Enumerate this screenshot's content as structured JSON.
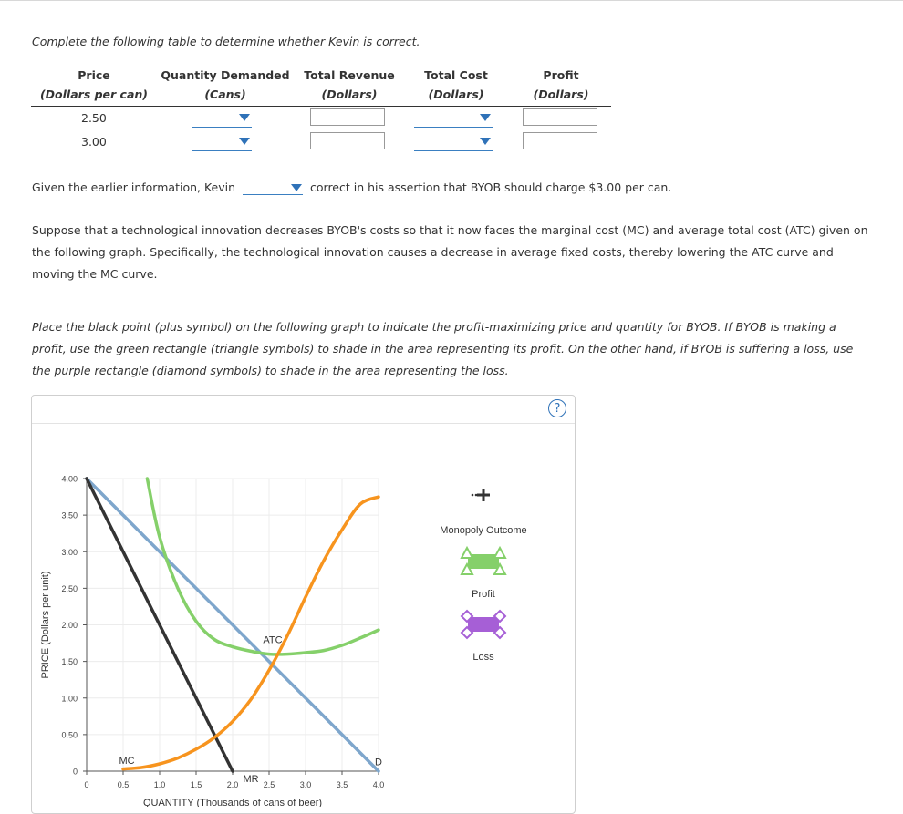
{
  "intro": "Complete the following table to determine whether Kevin is correct.",
  "table": {
    "headers": [
      {
        "title": "Price",
        "sub": "(Dollars per can)"
      },
      {
        "title": "Quantity Demanded",
        "sub": "(Cans)"
      },
      {
        "title": "Total Revenue",
        "sub": "(Dollars)"
      },
      {
        "title": "Total Cost",
        "sub": "(Dollars)"
      },
      {
        "title": "Profit",
        "sub": "(Dollars)"
      }
    ],
    "rows": [
      {
        "price": "2.50"
      },
      {
        "price": "3.00"
      }
    ]
  },
  "assertion": {
    "before": "Given the earlier information, Kevin",
    "after": "correct in his assertion that BYOB should charge $3.00 per can."
  },
  "paragraph1": "Suppose that a technological innovation decreases BYOB's costs so that it now faces the marginal cost (MC) and average total cost (ATC) given on the following graph. Specifically, the technological innovation causes a decrease in average fixed costs, thereby lowering the ATC curve and moving the MC curve.",
  "paragraph2": "Place the black point (plus symbol) on the following graph to indicate the profit-maximizing price and quantity for BYOB. If BYOB is making a profit, use the green rectangle (triangle symbols) to shade in the area representing its profit. On the other hand, if BYOB is suffering a loss, use the purple rectangle (diamond symbols) to shade in the area representing the loss.",
  "help_symbol": "?",
  "chart_data": {
    "type": "line",
    "xlabel": "QUANTITY (Thousands of cans of beer)",
    "ylabel": "PRICE (Dollars per unit)",
    "xlim": [
      0,
      4
    ],
    "ylim": [
      0,
      4
    ],
    "x_ticks": [
      "0",
      "0.5",
      "1.0",
      "1.5",
      "2.0",
      "2.5",
      "3.0",
      "3.5",
      "4.0"
    ],
    "y_ticks": [
      "0",
      "0.50",
      "1.00",
      "1.50",
      "2.00",
      "2.50",
      "3.00",
      "3.50",
      "4.00"
    ],
    "series": [
      {
        "name": "D",
        "color": "#7ea6cc",
        "points": [
          [
            0,
            4.0
          ],
          [
            4.0,
            0.0
          ]
        ]
      },
      {
        "name": "MR",
        "color": "#333333",
        "points": [
          [
            0,
            4.0
          ],
          [
            2.0,
            0.0
          ]
        ]
      },
      {
        "name": "ATC",
        "color": "#85d06a",
        "points": [
          [
            0.83,
            4.0
          ],
          [
            1.0,
            3.2
          ],
          [
            1.25,
            2.5
          ],
          [
            1.5,
            2.05
          ],
          [
            1.75,
            1.8
          ],
          [
            2.0,
            1.7
          ],
          [
            2.25,
            1.64
          ],
          [
            2.5,
            1.6
          ],
          [
            2.75,
            1.6
          ],
          [
            3.0,
            1.62
          ],
          [
            3.25,
            1.65
          ],
          [
            3.5,
            1.72
          ],
          [
            3.75,
            1.82
          ],
          [
            4.0,
            1.93
          ]
        ]
      },
      {
        "name": "MC",
        "color": "#f7941e",
        "points": [
          [
            0.5,
            0.03
          ],
          [
            0.75,
            0.05
          ],
          [
            1.0,
            0.1
          ],
          [
            1.25,
            0.18
          ],
          [
            1.5,
            0.3
          ],
          [
            1.75,
            0.46
          ],
          [
            2.0,
            0.68
          ],
          [
            2.25,
            0.98
          ],
          [
            2.5,
            1.38
          ],
          [
            2.75,
            1.85
          ],
          [
            3.0,
            2.38
          ],
          [
            3.25,
            2.88
          ],
          [
            3.5,
            3.3
          ],
          [
            3.75,
            3.65
          ],
          [
            4.0,
            3.75
          ]
        ]
      }
    ],
    "curve_labels": [
      {
        "text": "ATC",
        "x": 2.55,
        "y": 1.75
      },
      {
        "text": "MC",
        "x": 0.55,
        "y": 0.1
      },
      {
        "text": "MR",
        "x": 2.25,
        "y": -0.15
      },
      {
        "text": "D",
        "x": 4.0,
        "y": 0.08
      }
    ],
    "palette": [
      {
        "name": "Monopoly Outcome",
        "symbol": "plus",
        "color": "#333333"
      },
      {
        "name": "Profit",
        "symbol": "triangle",
        "color": "#85d06a"
      },
      {
        "name": "Loss",
        "symbol": "diamond",
        "color": "#a65fd6"
      }
    ]
  }
}
